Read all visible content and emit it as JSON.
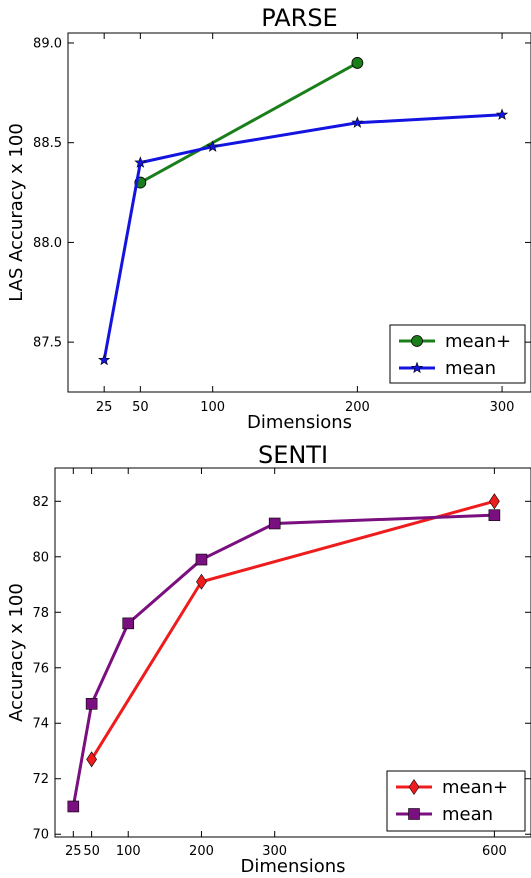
{
  "chart_data": [
    {
      "type": "line",
      "title": "PARSE",
      "xlabel": "Dimensions",
      "ylabel": "LAS Accuracy x 100",
      "xlim": [
        0,
        320
      ],
      "ylim": [
        87.25,
        89.05
      ],
      "xticks": [
        25,
        50,
        100,
        200,
        300
      ],
      "xtick_labels": [
        "25",
        "50",
        "100",
        "200",
        "300"
      ],
      "yticks": [
        87.5,
        88.0,
        88.5,
        89.0
      ],
      "ytick_labels": [
        "87.5",
        "88.0",
        "88.5",
        "89.0"
      ],
      "legend_position": "bottom-right",
      "series": [
        {
          "name": "mean+",
          "color": "#1a7f1a",
          "marker": "circle",
          "x": [
            50,
            200
          ],
          "y": [
            88.3,
            88.9
          ]
        },
        {
          "name": "mean",
          "color": "#1414e0",
          "marker": "star",
          "x": [
            25,
            50,
            100,
            200,
            300
          ],
          "y": [
            87.41,
            88.4,
            88.48,
            88.6,
            88.64
          ]
        }
      ]
    },
    {
      "type": "line",
      "title": "SENTI",
      "xlabel": "Dimensions",
      "ylabel": "Accuracy x 100",
      "xlim": [
        0,
        650
      ],
      "ylim": [
        69.9,
        83.2
      ],
      "xticks": [
        25,
        50,
        100,
        200,
        300,
        600
      ],
      "xtick_labels": [
        "25",
        "50",
        "100",
        "200",
        "300",
        "600"
      ],
      "yticks": [
        70,
        72,
        74,
        76,
        78,
        80,
        82
      ],
      "ytick_labels": [
        "70",
        "72",
        "74",
        "76",
        "78",
        "80",
        "82"
      ],
      "legend_position": "bottom-right",
      "series": [
        {
          "name": "mean+",
          "color": "#ee1c1c",
          "marker": "diamond",
          "x": [
            50,
            200,
            600
          ],
          "y": [
            72.7,
            79.1,
            82.0
          ]
        },
        {
          "name": "mean",
          "color": "#7a0f80",
          "marker": "square",
          "x": [
            25,
            50,
            100,
            200,
            300,
            600
          ],
          "y": [
            71.0,
            74.7,
            77.6,
            79.9,
            81.2,
            81.5
          ]
        }
      ]
    }
  ]
}
